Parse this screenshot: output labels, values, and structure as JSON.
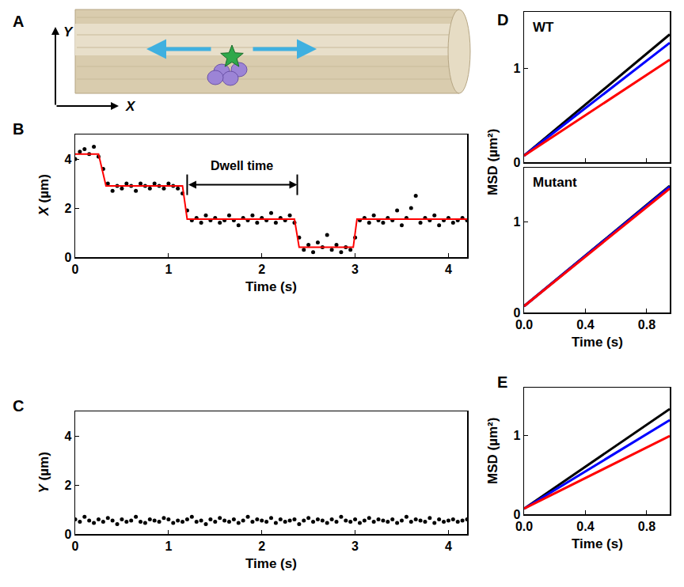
{
  "diagram": {
    "panel": "A",
    "x_axis_label": "X",
    "y_axis_label": "Y"
  },
  "chart_data": [
    {
      "panel": "B",
      "type": "scatter",
      "xlabel": "Time (s)",
      "ylabel": "X (µm)",
      "xlim": [
        0,
        4.2
      ],
      "xticks": [
        0,
        1,
        2,
        3,
        4
      ],
      "ylim": [
        0,
        5
      ],
      "yticks": [
        0,
        2,
        4
      ],
      "annotations": [
        {
          "text": "Dwell time",
          "x_start": 1.2,
          "x_end": 2.38,
          "y": 2.95
        }
      ],
      "series": [
        {
          "type": "scatter",
          "marker": "circle",
          "color": "#000000",
          "x": [
            0,
            0.05,
            0.1,
            0.15,
            0.2,
            0.25,
            0.3,
            0.35,
            0.4,
            0.45,
            0.5,
            0.55,
            0.6,
            0.65,
            0.7,
            0.75,
            0.8,
            0.85,
            0.9,
            0.95,
            1,
            1.05,
            1.1,
            1.15,
            1.2,
            1.25,
            1.3,
            1.35,
            1.4,
            1.45,
            1.5,
            1.55,
            1.6,
            1.65,
            1.7,
            1.75,
            1.8,
            1.85,
            1.9,
            1.95,
            2,
            2.05,
            2.1,
            2.15,
            2.2,
            2.25,
            2.3,
            2.35,
            2.4,
            2.45,
            2.5,
            2.55,
            2.6,
            2.65,
            2.7,
            2.75,
            2.8,
            2.85,
            2.9,
            2.95,
            3,
            3.05,
            3.1,
            3.15,
            3.2,
            3.25,
            3.3,
            3.35,
            3.4,
            3.45,
            3.5,
            3.55,
            3.6,
            3.65,
            3.7,
            3.75,
            3.8,
            3.85,
            3.9,
            3.95,
            4,
            4.05,
            4.1,
            4.15,
            4.2
          ],
          "values": [
            4.0,
            4.3,
            4.4,
            4.2,
            4.5,
            4.1,
            3.6,
            3.0,
            2.7,
            2.9,
            2.8,
            3.0,
            2.9,
            2.7,
            3.0,
            2.9,
            2.8,
            3.0,
            2.9,
            2.8,
            3.0,
            2.9,
            2.8,
            2.6,
            1.9,
            1.5,
            1.6,
            1.4,
            1.7,
            1.5,
            1.6,
            1.4,
            1.5,
            1.7,
            1.5,
            1.3,
            1.6,
            1.5,
            1.7,
            1.4,
            1.6,
            1.5,
            1.8,
            1.4,
            1.6,
            1.5,
            1.7,
            1.4,
            0.8,
            0.3,
            0.5,
            0.2,
            0.6,
            0.4,
            0.9,
            0.3,
            0.5,
            0.2,
            0.4,
            0.3,
            0.8,
            1.5,
            1.6,
            1.4,
            1.7,
            1.5,
            1.4,
            1.6,
            1.5,
            1.9,
            1.3,
            1.6,
            2.0,
            2.5,
            1.4,
            1.6,
            1.5,
            1.7,
            1.3,
            1.5,
            1.6,
            1.4,
            1.5,
            1.6,
            1.5
          ]
        },
        {
          "type": "line",
          "line_style": "solid",
          "color": "#ff0000",
          "x": [
            0,
            0.25,
            0.33,
            1.15,
            1.2,
            2.35,
            2.4,
            2.98,
            3.02,
            4.2
          ],
          "values": [
            4.2,
            4.2,
            2.9,
            2.9,
            1.55,
            1.55,
            0.4,
            0.4,
            1.55,
            1.55
          ]
        }
      ]
    },
    {
      "panel": "C",
      "type": "scatter",
      "xlabel": "Time (s)",
      "ylabel": "Y (µm)",
      "xlim": [
        0,
        4.2
      ],
      "xticks": [
        0,
        1,
        2,
        3,
        4
      ],
      "ylim": [
        0,
        5
      ],
      "yticks": [
        0,
        2,
        4
      ],
      "series": [
        {
          "type": "scatter",
          "marker": "circle",
          "color": "#000000",
          "x": [
            0,
            0.05,
            0.1,
            0.15,
            0.2,
            0.25,
            0.3,
            0.35,
            0.4,
            0.45,
            0.5,
            0.55,
            0.6,
            0.65,
            0.7,
            0.75,
            0.8,
            0.85,
            0.9,
            0.95,
            1,
            1.05,
            1.1,
            1.15,
            1.2,
            1.25,
            1.3,
            1.35,
            1.4,
            1.45,
            1.5,
            1.55,
            1.6,
            1.65,
            1.7,
            1.75,
            1.8,
            1.85,
            1.9,
            1.95,
            2,
            2.05,
            2.1,
            2.15,
            2.2,
            2.25,
            2.3,
            2.35,
            2.4,
            2.45,
            2.5,
            2.55,
            2.6,
            2.65,
            2.7,
            2.75,
            2.8,
            2.85,
            2.9,
            2.95,
            3,
            3.05,
            3.1,
            3.15,
            3.2,
            3.25,
            3.3,
            3.35,
            3.4,
            3.45,
            3.5,
            3.55,
            3.6,
            3.65,
            3.7,
            3.75,
            3.8,
            3.85,
            3.9,
            3.95,
            4,
            4.05,
            4.1,
            4.15,
            4.2
          ],
          "values": [
            0.6,
            0.5,
            0.7,
            0.55,
            0.45,
            0.6,
            0.5,
            0.65,
            0.55,
            0.4,
            0.6,
            0.5,
            0.55,
            0.7,
            0.5,
            0.45,
            0.6,
            0.55,
            0.5,
            0.65,
            0.6,
            0.45,
            0.55,
            0.5,
            0.6,
            0.7,
            0.5,
            0.55,
            0.4,
            0.6,
            0.5,
            0.65,
            0.55,
            0.5,
            0.6,
            0.45,
            0.55,
            0.7,
            0.5,
            0.6,
            0.55,
            0.5,
            0.65,
            0.45,
            0.6,
            0.5,
            0.55,
            0.6,
            0.4,
            0.55,
            0.65,
            0.5,
            0.6,
            0.55,
            0.45,
            0.6,
            0.5,
            0.7,
            0.55,
            0.5,
            0.6,
            0.45,
            0.55,
            0.65,
            0.5,
            0.6,
            0.55,
            0.5,
            0.6,
            0.45,
            0.55,
            0.7,
            0.5,
            0.6,
            0.55,
            0.5,
            0.65,
            0.45,
            0.6,
            0.5,
            0.55,
            0.6,
            0.5,
            0.55,
            0.6
          ]
        }
      ]
    },
    {
      "panel": "D",
      "type": "line",
      "xlabel": "Time (s)",
      "ylabel": "MSD (µm²)",
      "subplots": [
        {
          "title": "WT",
          "tick_labels": "y",
          "xlim": [
            0,
            0.95
          ],
          "xticks": [
            {
              "value": 0,
              "label": "0.0"
            },
            0.4,
            0.8
          ],
          "ylim": [
            0,
            1.6
          ],
          "yticks": [
            0,
            1
          ],
          "series": [
            {
              "color": "#000000",
              "x": [
                0,
                0.95
              ],
              "values": [
                0.07,
                1.36
              ]
            },
            {
              "color": "#0000ff",
              "x": [
                0,
                0.95
              ],
              "values": [
                0.07,
                1.27
              ]
            },
            {
              "color": "#ff0000",
              "x": [
                0,
                0.95
              ],
              "values": [
                0.07,
                1.09
              ]
            }
          ]
        },
        {
          "title": "Mutant",
          "xlim": [
            0,
            0.95
          ],
          "xticks": [
            {
              "value": 0,
              "label": "0.0"
            },
            0.4,
            0.8
          ],
          "ylim": [
            0,
            1.6
          ],
          "yticks": [
            0,
            1
          ],
          "series": [
            {
              "color": "#000000",
              "x": [
                0,
                0.95
              ],
              "values": [
                0.07,
                1.4
              ]
            },
            {
              "color": "#0000ff",
              "x": [
                0,
                0.95
              ],
              "values": [
                0.07,
                1.39
              ]
            },
            {
              "color": "#ff0000",
              "x": [
                0,
                0.95
              ],
              "values": [
                0.07,
                1.37
              ]
            }
          ]
        }
      ]
    },
    {
      "panel": "E",
      "type": "line",
      "xlabel": "Time (s)",
      "ylabel": "MSD (µm²)",
      "xlim": [
        0,
        0.95
      ],
      "xticks": [
        {
          "value": 0,
          "label": "0.0"
        },
        0.4,
        0.8
      ],
      "ylim": [
        0,
        1.6
      ],
      "yticks": [
        0,
        1
      ],
      "series": [
        {
          "color": "#000000",
          "x": [
            0,
            0.95
          ],
          "values": [
            0.07,
            1.33
          ]
        },
        {
          "color": "#0000ff",
          "x": [
            0,
            0.95
          ],
          "values": [
            0.07,
            1.19
          ]
        },
        {
          "color": "#ff0000",
          "x": [
            0,
            0.95
          ],
          "values": [
            0.07,
            0.99
          ]
        }
      ]
    }
  ]
}
